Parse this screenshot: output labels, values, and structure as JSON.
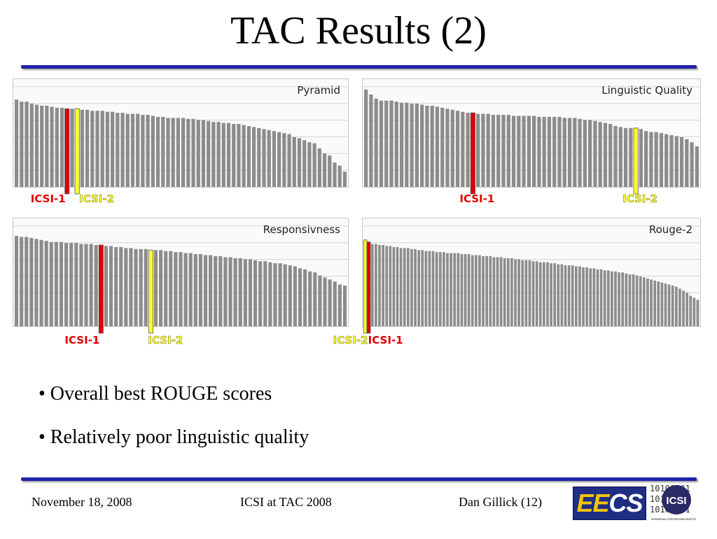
{
  "slide": {
    "title": "TAC Results (2)",
    "bullets": [
      "• Overall best ROUGE scores",
      "• Relatively poor linguistic quality"
    ],
    "footer": {
      "date": "November 18, 2008",
      "center": "ICSI at TAC 2008",
      "author": "Dan Gillick   (12)"
    },
    "logos": {
      "eecs_ee": "EE",
      "eecs_cs": "CS",
      "icsi_text": "ICSI",
      "icsi_binary": "10100101",
      "icsi_caption": "INTERNATIONAL COMPUTER SCIENCE INSTITUTE"
    }
  },
  "colors": {
    "bar": "#8c8c8c",
    "icsi1": "#e00000",
    "icsi2": "#ffff33",
    "grid": "#d4d4d4",
    "rule": "#2222a8"
  },
  "chart_data": [
    {
      "type": "bar",
      "title": "Pyramid",
      "ylim": [
        0,
        100
      ],
      "grid": true,
      "values": [
        86,
        84,
        84,
        82,
        81,
        80,
        80,
        79,
        78,
        78,
        77,
        77,
        77,
        76,
        76,
        75,
        75,
        75,
        74,
        74,
        73,
        73,
        72,
        72,
        72,
        71,
        71,
        70,
        69,
        69,
        68,
        68,
        68,
        68,
        67,
        67,
        66,
        66,
        65,
        64,
        64,
        63,
        63,
        62,
        62,
        61,
        60,
        59,
        58,
        57,
        56,
        55,
        54,
        53,
        52,
        49,
        48,
        46,
        44,
        43,
        38,
        33,
        31,
        24,
        21,
        15
      ],
      "highlights": [
        {
          "label": "ICSI-1",
          "index": 10,
          "color": "#e00000"
        },
        {
          "label": "ICSI-2",
          "index": 12,
          "color": "#ffff33"
        }
      ]
    },
    {
      "type": "bar",
      "title": "Linguistic Quality",
      "ylim": [
        0,
        100
      ],
      "grid": true,
      "values": [
        96,
        91,
        87,
        85,
        85,
        85,
        84,
        83,
        83,
        82,
        82,
        81,
        80,
        80,
        79,
        78,
        77,
        76,
        75,
        74,
        73,
        73,
        72,
        72,
        72,
        71,
        71,
        71,
        71,
        70,
        70,
        70,
        70,
        70,
        69,
        69,
        69,
        69,
        69,
        68,
        68,
        68,
        67,
        66,
        66,
        65,
        64,
        63,
        62,
        60,
        59,
        58,
        58,
        58,
        57,
        55,
        54,
        54,
        53,
        52,
        51,
        50,
        49,
        47,
        44,
        40
      ],
      "highlights": [
        {
          "label": "ICSI-1",
          "index": 21,
          "color": "#e00000"
        },
        {
          "label": "ICSI-2",
          "index": 53,
          "color": "#ffff33"
        }
      ]
    },
    {
      "type": "bar",
      "title": "Responsivness",
      "ylim": [
        0,
        100
      ],
      "grid": true,
      "values": [
        89,
        88,
        88,
        87,
        86,
        85,
        84,
        83,
        83,
        83,
        82,
        82,
        82,
        81,
        81,
        81,
        80,
        80,
        79,
        79,
        78,
        78,
        77,
        77,
        76,
        76,
        76,
        75,
        75,
        75,
        74,
        74,
        73,
        73,
        72,
        72,
        71,
        71,
        70,
        70,
        69,
        69,
        68,
        68,
        67,
        67,
        66,
        66,
        65,
        64,
        64,
        63,
        62,
        62,
        61,
        60,
        59,
        57,
        56,
        54,
        53,
        50,
        48,
        46,
        44,
        41,
        40
      ],
      "highlights": [
        {
          "label": "ICSI-1",
          "index": 17,
          "color": "#e00000"
        },
        {
          "label": "ICSI-2",
          "index": 27,
          "color": "#ffff33"
        }
      ]
    },
    {
      "type": "bar",
      "title": "Rouge-2",
      "ylim": [
        0,
        100
      ],
      "grid": true,
      "values": [
        85,
        83,
        81,
        81,
        80,
        80,
        79,
        79,
        78,
        78,
        77,
        77,
        77,
        76,
        76,
        75,
        75,
        74,
        74,
        74,
        73,
        73,
        73,
        72,
        72,
        72,
        72,
        71,
        71,
        71,
        70,
        70,
        70,
        69,
        69,
        69,
        68,
        68,
        68,
        67,
        67,
        67,
        66,
        66,
        65,
        65,
        65,
        64,
        64,
        63,
        63,
        63,
        62,
        62,
        61,
        61,
        60,
        60,
        60,
        59,
        59,
        58,
        58,
        57,
        57,
        56,
        56,
        55,
        55,
        54,
        54,
        53,
        53,
        52,
        51,
        51,
        50,
        49,
        48,
        47,
        46,
        45,
        44,
        43,
        42,
        41,
        40,
        39,
        37,
        35,
        33,
        30,
        28,
        26
      ],
      "highlights": [
        {
          "label": "ICSI-2",
          "index": 0,
          "color": "#ffff33"
        },
        {
          "label": "ICSI-1",
          "index": 1,
          "color": "#e00000"
        }
      ]
    }
  ]
}
